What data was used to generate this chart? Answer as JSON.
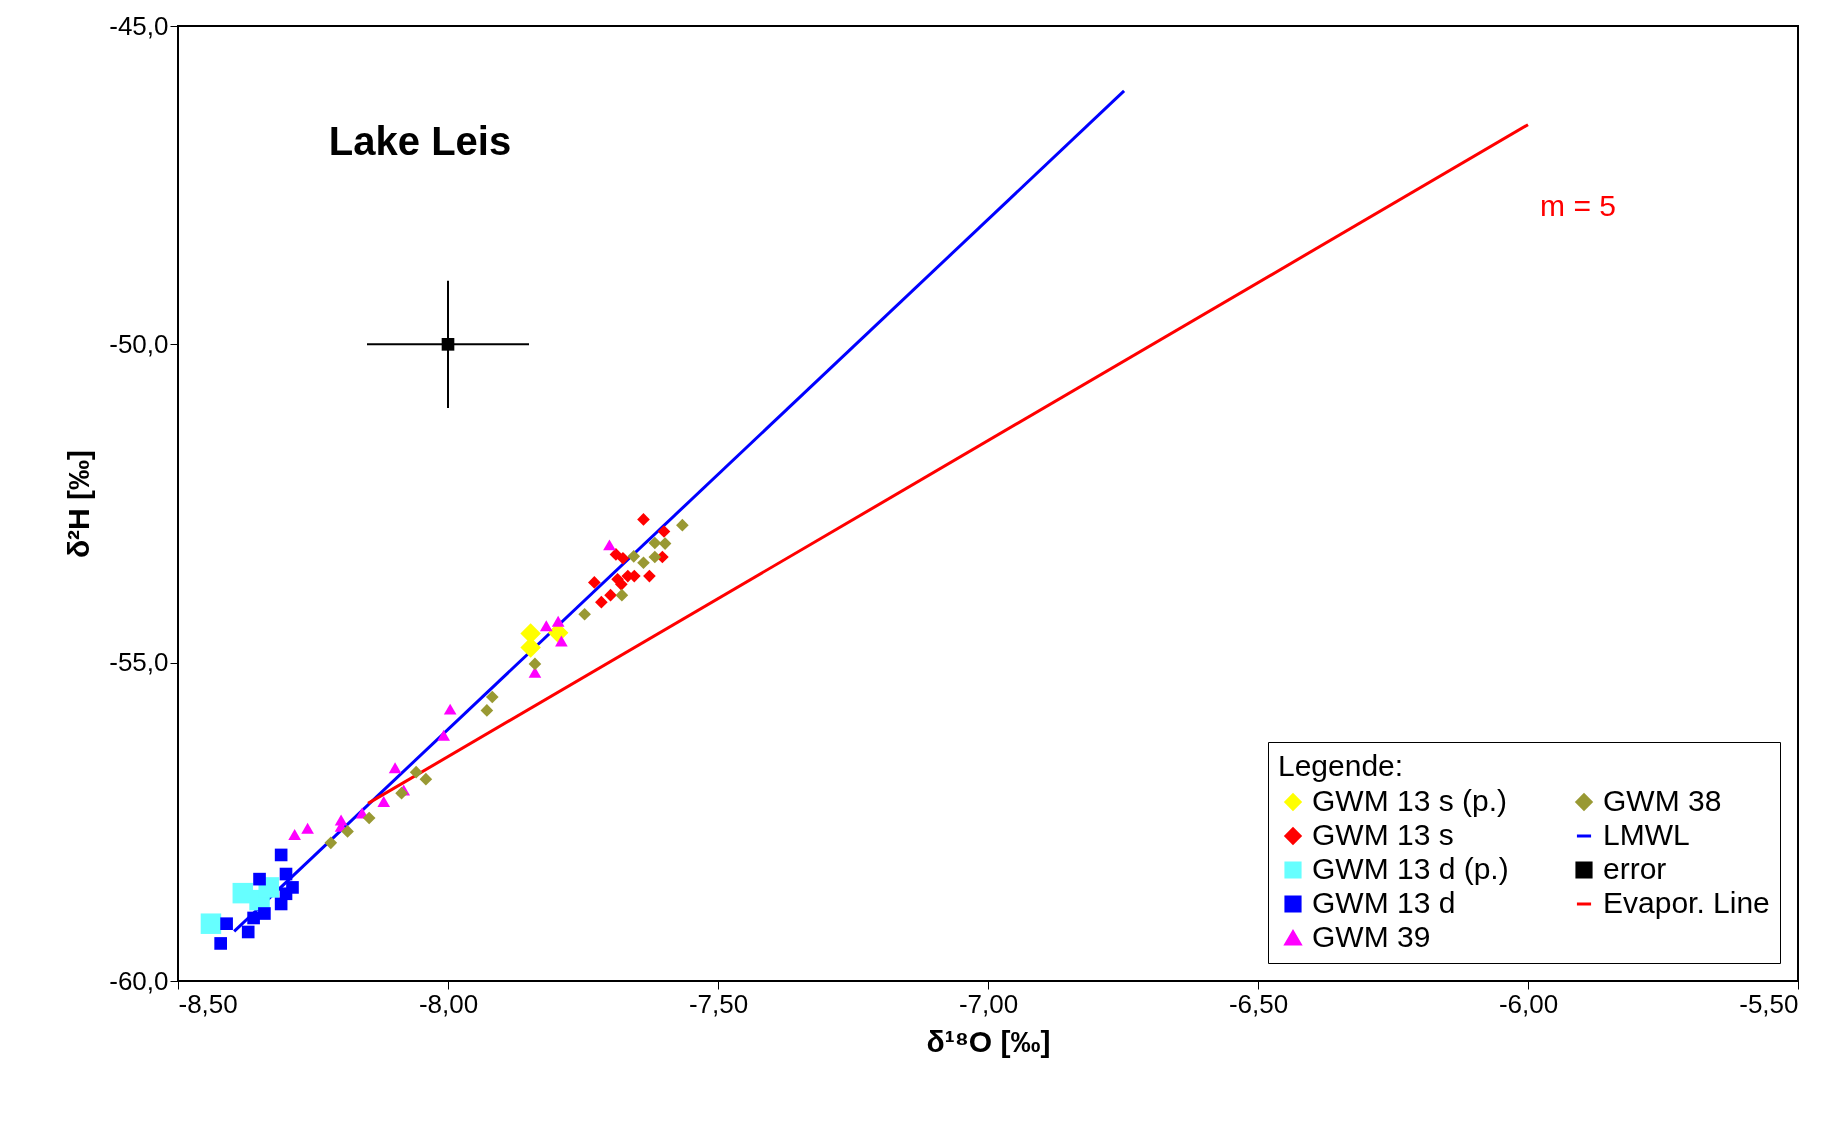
{
  "chart_data": {
    "type": "scatter",
    "xlabel": "δ¹⁸O [‰]",
    "ylabel": "δ²H [‰]",
    "legend_title": "Legende:",
    "legend": "bottom right",
    "grid": false,
    "xlim": [
      -8.5,
      -5.5
    ],
    "ylim": [
      -60,
      -45
    ],
    "xticks": [
      {
        "value": -8.5,
        "label": "-8,50"
      },
      {
        "value": -8,
        "label": "-8,00"
      },
      {
        "value": -7.5,
        "label": "-7,50"
      },
      {
        "value": -7,
        "label": "-7,00"
      },
      {
        "value": -6.5,
        "label": "-6,50"
      },
      {
        "value": -6,
        "label": "-6,00"
      },
      {
        "value": -5.5,
        "label": "-5,50"
      }
    ],
    "yticks": [
      {
        "value": -60,
        "label": "-60,0"
      },
      {
        "value": -55,
        "label": "-55,0"
      },
      {
        "value": -50,
        "label": "-50,0"
      },
      {
        "value": -45,
        "label": "-45,0"
      }
    ],
    "annotations": [
      "Lake Leis",
      "m = 5"
    ],
    "series": [
      {
        "name": "GWM 13 s (p.)",
        "color": "#ffff00",
        "marker": "diamond",
        "x": [
          -7.847,
          -7.847,
          -7.796
        ],
        "values": [
          -54.54,
          -54.76,
          -54.53
        ]
      },
      {
        "name": "GWM 13 s",
        "color": "#ff0000",
        "marker": "diamond",
        "x": [
          -7.638,
          -7.6,
          -7.603,
          -7.627,
          -7.699,
          -7.716,
          -7.729,
          -7.689,
          -7.676,
          -7.686,
          -7.667,
          -7.655,
          -7.679
        ],
        "values": [
          -52.75,
          -52.94,
          -53.34,
          -53.64,
          -53.94,
          -54.05,
          -53.74,
          -53.3,
          -53.36,
          -53.69,
          -53.64,
          -53.64,
          -53.77
        ]
      },
      {
        "name": "GWM 13 d (p.)",
        "color": "#66ffff",
        "marker": "square",
        "x": [
          -8.439,
          -8.38,
          -8.349,
          -8.332
        ],
        "values": [
          -59.1,
          -58.62,
          -58.73,
          -58.53
        ]
      },
      {
        "name": "GWM 13 d",
        "color": "#0000ff",
        "marker": "square",
        "x": [
          -8.421,
          -8.41,
          -8.37,
          -8.36,
          -8.34,
          -8.349,
          -8.309,
          -8.3,
          -8.288,
          -8.309,
          -8.3
        ],
        "values": [
          -59.41,
          -59.1,
          -59.23,
          -59.01,
          -58.94,
          -58.4,
          -58.02,
          -58.32,
          -58.53,
          -58.79,
          -58.63
        ]
      },
      {
        "name": "GWM 39",
        "color": "#ff00ff",
        "marker": "triangle",
        "x": [
          -8.284,
          -8.26,
          -8.198,
          -8.198,
          -8.159,
          -8.119,
          -8.082,
          -8.098,
          -8.008,
          -7.996,
          -7.839,
          -7.818,
          -7.796,
          -7.79,
          -7.701
        ],
        "values": [
          -57.7,
          -57.6,
          -57.47,
          -57.57,
          -57.36,
          -57.18,
          -57.0,
          -56.65,
          -56.14,
          -55.73,
          -55.15,
          -54.42,
          -54.35,
          -54.66,
          -53.15
        ]
      },
      {
        "name": "GWM 38",
        "color": "#999933",
        "marker": "diamond",
        "x": [
          -8.217,
          -8.186,
          -8.146,
          -8.086,
          -8.059,
          -8.041,
          -7.928,
          -7.918,
          -7.839,
          -7.747,
          -7.678,
          -7.656,
          -7.638,
          -7.617,
          -7.617,
          -7.598,
          -7.566
        ],
        "values": [
          -57.83,
          -57.65,
          -57.44,
          -57.05,
          -56.72,
          -56.83,
          -55.75,
          -55.54,
          -55.02,
          -54.24,
          -53.94,
          -53.33,
          -53.43,
          -53.34,
          -53.12,
          -53.13,
          -52.84
        ]
      },
      {
        "name": "LMWL",
        "color": "#0000ff",
        "type": "line",
        "marker": "none",
        "x": [
          -8.396,
          -6.748
        ],
        "values": [
          -59.22,
          -46.02
        ]
      },
      {
        "name": "error",
        "color": "#000000",
        "marker": "square",
        "x": [
          -8.0
        ],
        "values": [
          -50.0
        ],
        "errors": [
          1
        ],
        "xerrors": [
          0.15
        ]
      },
      {
        "name": "Evapor. Line",
        "color": "#ff0000",
        "type": "line",
        "marker": "none",
        "x": [
          -8.148,
          -6.0
        ],
        "values": [
          -57.21,
          -46.55
        ]
      }
    ]
  }
}
